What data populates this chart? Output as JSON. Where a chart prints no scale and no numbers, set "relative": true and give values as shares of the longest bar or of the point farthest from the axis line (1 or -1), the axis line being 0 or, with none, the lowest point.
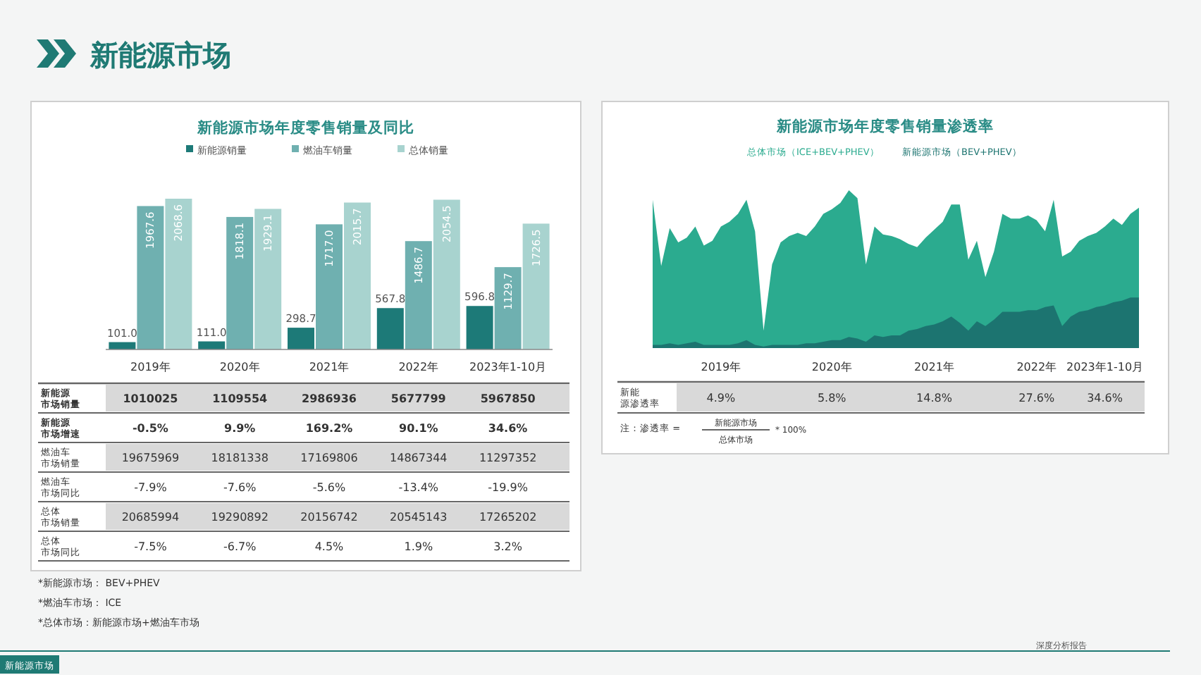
{
  "chart_data": [
    {
      "type": "bar",
      "title": "新能源市场年度零售销量及同比",
      "categories": [
        "2019年",
        "2020年",
        "2021年",
        "2022年",
        "2023年1-10月"
      ],
      "legend": "top",
      "series": [
        {
          "name": "新能源销量",
          "color": "#1d7a78",
          "values": [
            101.0,
            111.0,
            298.7,
            567.8,
            596.8
          ],
          "value_labels": [
            "101.0",
            "111.0",
            "298.7",
            "567.8",
            "596.8"
          ]
        },
        {
          "name": "燃油车销量",
          "color": "#6fb0b0",
          "values": [
            1967.6,
            1818.1,
            1717.0,
            1486.7,
            1129.7
          ],
          "value_labels": [
            "1967.6",
            "1818.1",
            "1717.0",
            "1486.7",
            "1129.7"
          ]
        },
        {
          "name": "总体销量",
          "color": "#a8d3cf",
          "values": [
            2068.6,
            1929.1,
            2015.7,
            2054.5,
            1726.5
          ],
          "value_labels": [
            "2068.6",
            "1929.1",
            "2015.7",
            "2054.5",
            "1726.5"
          ]
        }
      ],
      "annotations": [
        "新能源市场",
        "新能源市场",
        "深度分析报告"
      ]
    },
    {
      "type": "other",
      "y_categories": [
        "新能源市场销量",
        "新能源市场增速",
        "燃油车市场销量",
        "燃油车市场同比",
        "总体市场销量",
        "总体市场同比"
      ],
      "cell_labels": [
        [
          "1010025",
          "1109554",
          "2986936",
          "5677799",
          "5967850"
        ],
        [
          "-0.5%",
          "9.9%",
          "169.2%",
          "90.1%",
          "34.6%"
        ],
        [
          "19675969",
          "18181338",
          "17169806",
          "14867344",
          "11297352"
        ],
        [
          "-7.9%",
          "-7.6%",
          "-5.6%",
          "-13.4%",
          "-19.9%"
        ],
        [
          "20685994",
          "19290892",
          "20156742",
          "20545143",
          "17265202"
        ],
        [
          "-7.5%",
          "-6.7%",
          "4.5%",
          "1.9%",
          "3.2%"
        ]
      ],
      "annotations": [
        "*新能源市场： BEV+PHEV",
        "*燃油车市场： ICE",
        "*总体市场：新能源市场+燃油车市场"
      ]
    },
    {
      "type": "area",
      "title": "新能源市场年度零售销量渗透率",
      "relative": true,
      "legend": "top",
      "categories": [
        null,
        null,
        null,
        null,
        null,
        null,
        null,
        null,
        "2019年",
        null,
        null,
        null,
        null,
        null,
        null,
        null,
        null,
        null,
        null,
        null,
        null,
        "2020年",
        null,
        null,
        null,
        null,
        null,
        null,
        null,
        null,
        null,
        null,
        null,
        "2021年",
        null,
        null,
        null,
        null,
        null,
        null,
        null,
        null,
        null,
        null,
        null,
        "2022年",
        null,
        null,
        null,
        null,
        null,
        null,
        null,
        "2023年1-10月",
        null,
        null,
        null,
        null
      ],
      "series": [
        {
          "name": "总体市场（ICE+BEV+PHEV）",
          "color": "#2bab8f",
          "values": [
            0.94,
            0.52,
            0.76,
            0.67,
            0.7,
            0.77,
            0.65,
            0.68,
            0.77,
            0.8,
            0.85,
            0.94,
            0.74,
            0.11,
            0.53,
            0.67,
            0.71,
            0.73,
            0.71,
            0.77,
            0.85,
            0.88,
            0.92,
            1.0,
            0.95,
            0.53,
            0.77,
            0.72,
            0.71,
            0.69,
            0.66,
            0.64,
            0.7,
            0.75,
            0.8,
            0.91,
            0.91,
            0.56,
            0.68,
            0.45,
            0.61,
            0.85,
            0.82,
            0.82,
            0.84,
            0.81,
            0.74,
            0.94,
            0.58,
            0.61,
            0.68,
            0.71,
            0.73,
            0.77,
            0.82,
            0.78,
            0.85,
            0.89
          ]
        },
        {
          "name": "新能源市场（BEV+PHEV）",
          "color": "#1c7470",
          "values": [
            0.02,
            0.02,
            0.03,
            0.02,
            0.03,
            0.04,
            0.02,
            0.02,
            0.02,
            0.02,
            0.03,
            0.05,
            0.02,
            0.01,
            0.02,
            0.02,
            0.02,
            0.02,
            0.03,
            0.03,
            0.04,
            0.05,
            0.05,
            0.07,
            0.06,
            0.04,
            0.08,
            0.07,
            0.08,
            0.08,
            0.11,
            0.12,
            0.14,
            0.15,
            0.17,
            0.2,
            0.16,
            0.11,
            0.17,
            0.14,
            0.18,
            0.23,
            0.23,
            0.23,
            0.24,
            0.24,
            0.26,
            0.27,
            0.14,
            0.2,
            0.23,
            0.24,
            0.26,
            0.27,
            0.29,
            0.3,
            0.32,
            0.32
          ]
        }
      ]
    },
    {
      "type": "other",
      "y_categories": [
        "新能源渗透率"
      ],
      "cell_labels": [
        [
          "4.9%",
          "5.8%",
          "14.8%",
          "27.6%",
          "34.6%"
        ]
      ],
      "annotations": [
        "注：渗透率 =",
        "新能源市场",
        "总体市场",
        "* 100%"
      ]
    }
  ]
}
